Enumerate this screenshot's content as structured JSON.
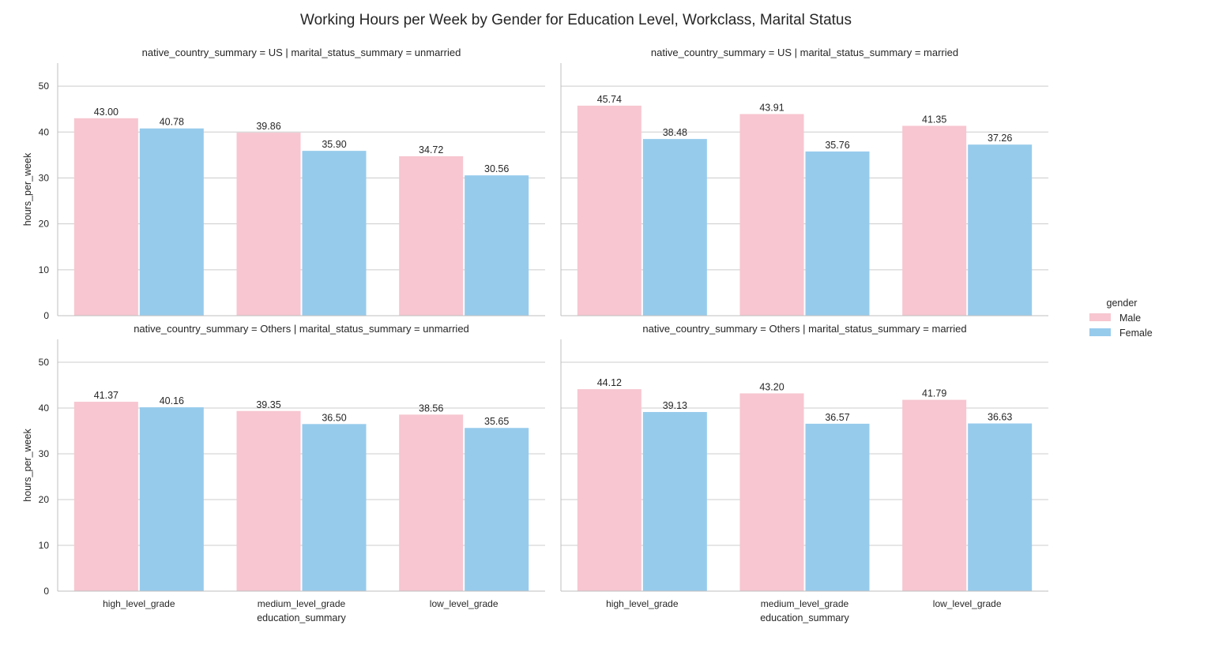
{
  "chart_data": {
    "type": "bar",
    "title": "Working Hours per Week by Gender for Education Level, Workclass, Marital Status",
    "xlabel": "education_summary",
    "ylabel": "hours_per_week",
    "ylim": [
      0,
      55
    ],
    "yticks": [
      0,
      10,
      20,
      30,
      40,
      50
    ],
    "grid": true,
    "categories": [
      "high_level_grade",
      "medium_level_grade",
      "low_level_grade"
    ],
    "legend": {
      "title": "gender",
      "placement": "right",
      "entries": [
        {
          "name": "Male",
          "color": "#f7c6d0"
        },
        {
          "name": "Female",
          "color": "#97cbec"
        }
      ]
    },
    "panels": [
      {
        "title": "native_country_summary = US | marital_status_summary = unmarried",
        "series": [
          {
            "name": "Male",
            "values": [
              43.0,
              39.86,
              34.72
            ],
            "labels": [
              "43.00",
              "39.86",
              "34.72"
            ]
          },
          {
            "name": "Female",
            "values": [
              40.78,
              35.9,
              30.56
            ],
            "labels": [
              "40.78",
              "35.90",
              "30.56"
            ]
          }
        ]
      },
      {
        "title": "native_country_summary = US | marital_status_summary = married",
        "series": [
          {
            "name": "Male",
            "values": [
              45.74,
              43.91,
              41.35
            ],
            "labels": [
              "45.74",
              "43.91",
              "41.35"
            ]
          },
          {
            "name": "Female",
            "values": [
              38.48,
              35.76,
              37.26
            ],
            "labels": [
              "38.48",
              "35.76",
              "37.26"
            ]
          }
        ]
      },
      {
        "title": "native_country_summary = Others | marital_status_summary = unmarried",
        "series": [
          {
            "name": "Male",
            "values": [
              41.37,
              39.35,
              38.56
            ],
            "labels": [
              "41.37",
              "39.35",
              "38.56"
            ]
          },
          {
            "name": "Female",
            "values": [
              40.16,
              36.5,
              35.65
            ],
            "labels": [
              "40.16",
              "36.50",
              "35.65"
            ]
          }
        ]
      },
      {
        "title": "native_country_summary = Others | marital_status_summary = married",
        "series": [
          {
            "name": "Male",
            "values": [
              44.12,
              43.2,
              41.79
            ],
            "labels": [
              "44.12",
              "43.20",
              "41.79"
            ]
          },
          {
            "name": "Female",
            "values": [
              39.13,
              36.57,
              36.63
            ],
            "labels": [
              "39.13",
              "36.57",
              "36.63"
            ]
          }
        ]
      }
    ]
  }
}
